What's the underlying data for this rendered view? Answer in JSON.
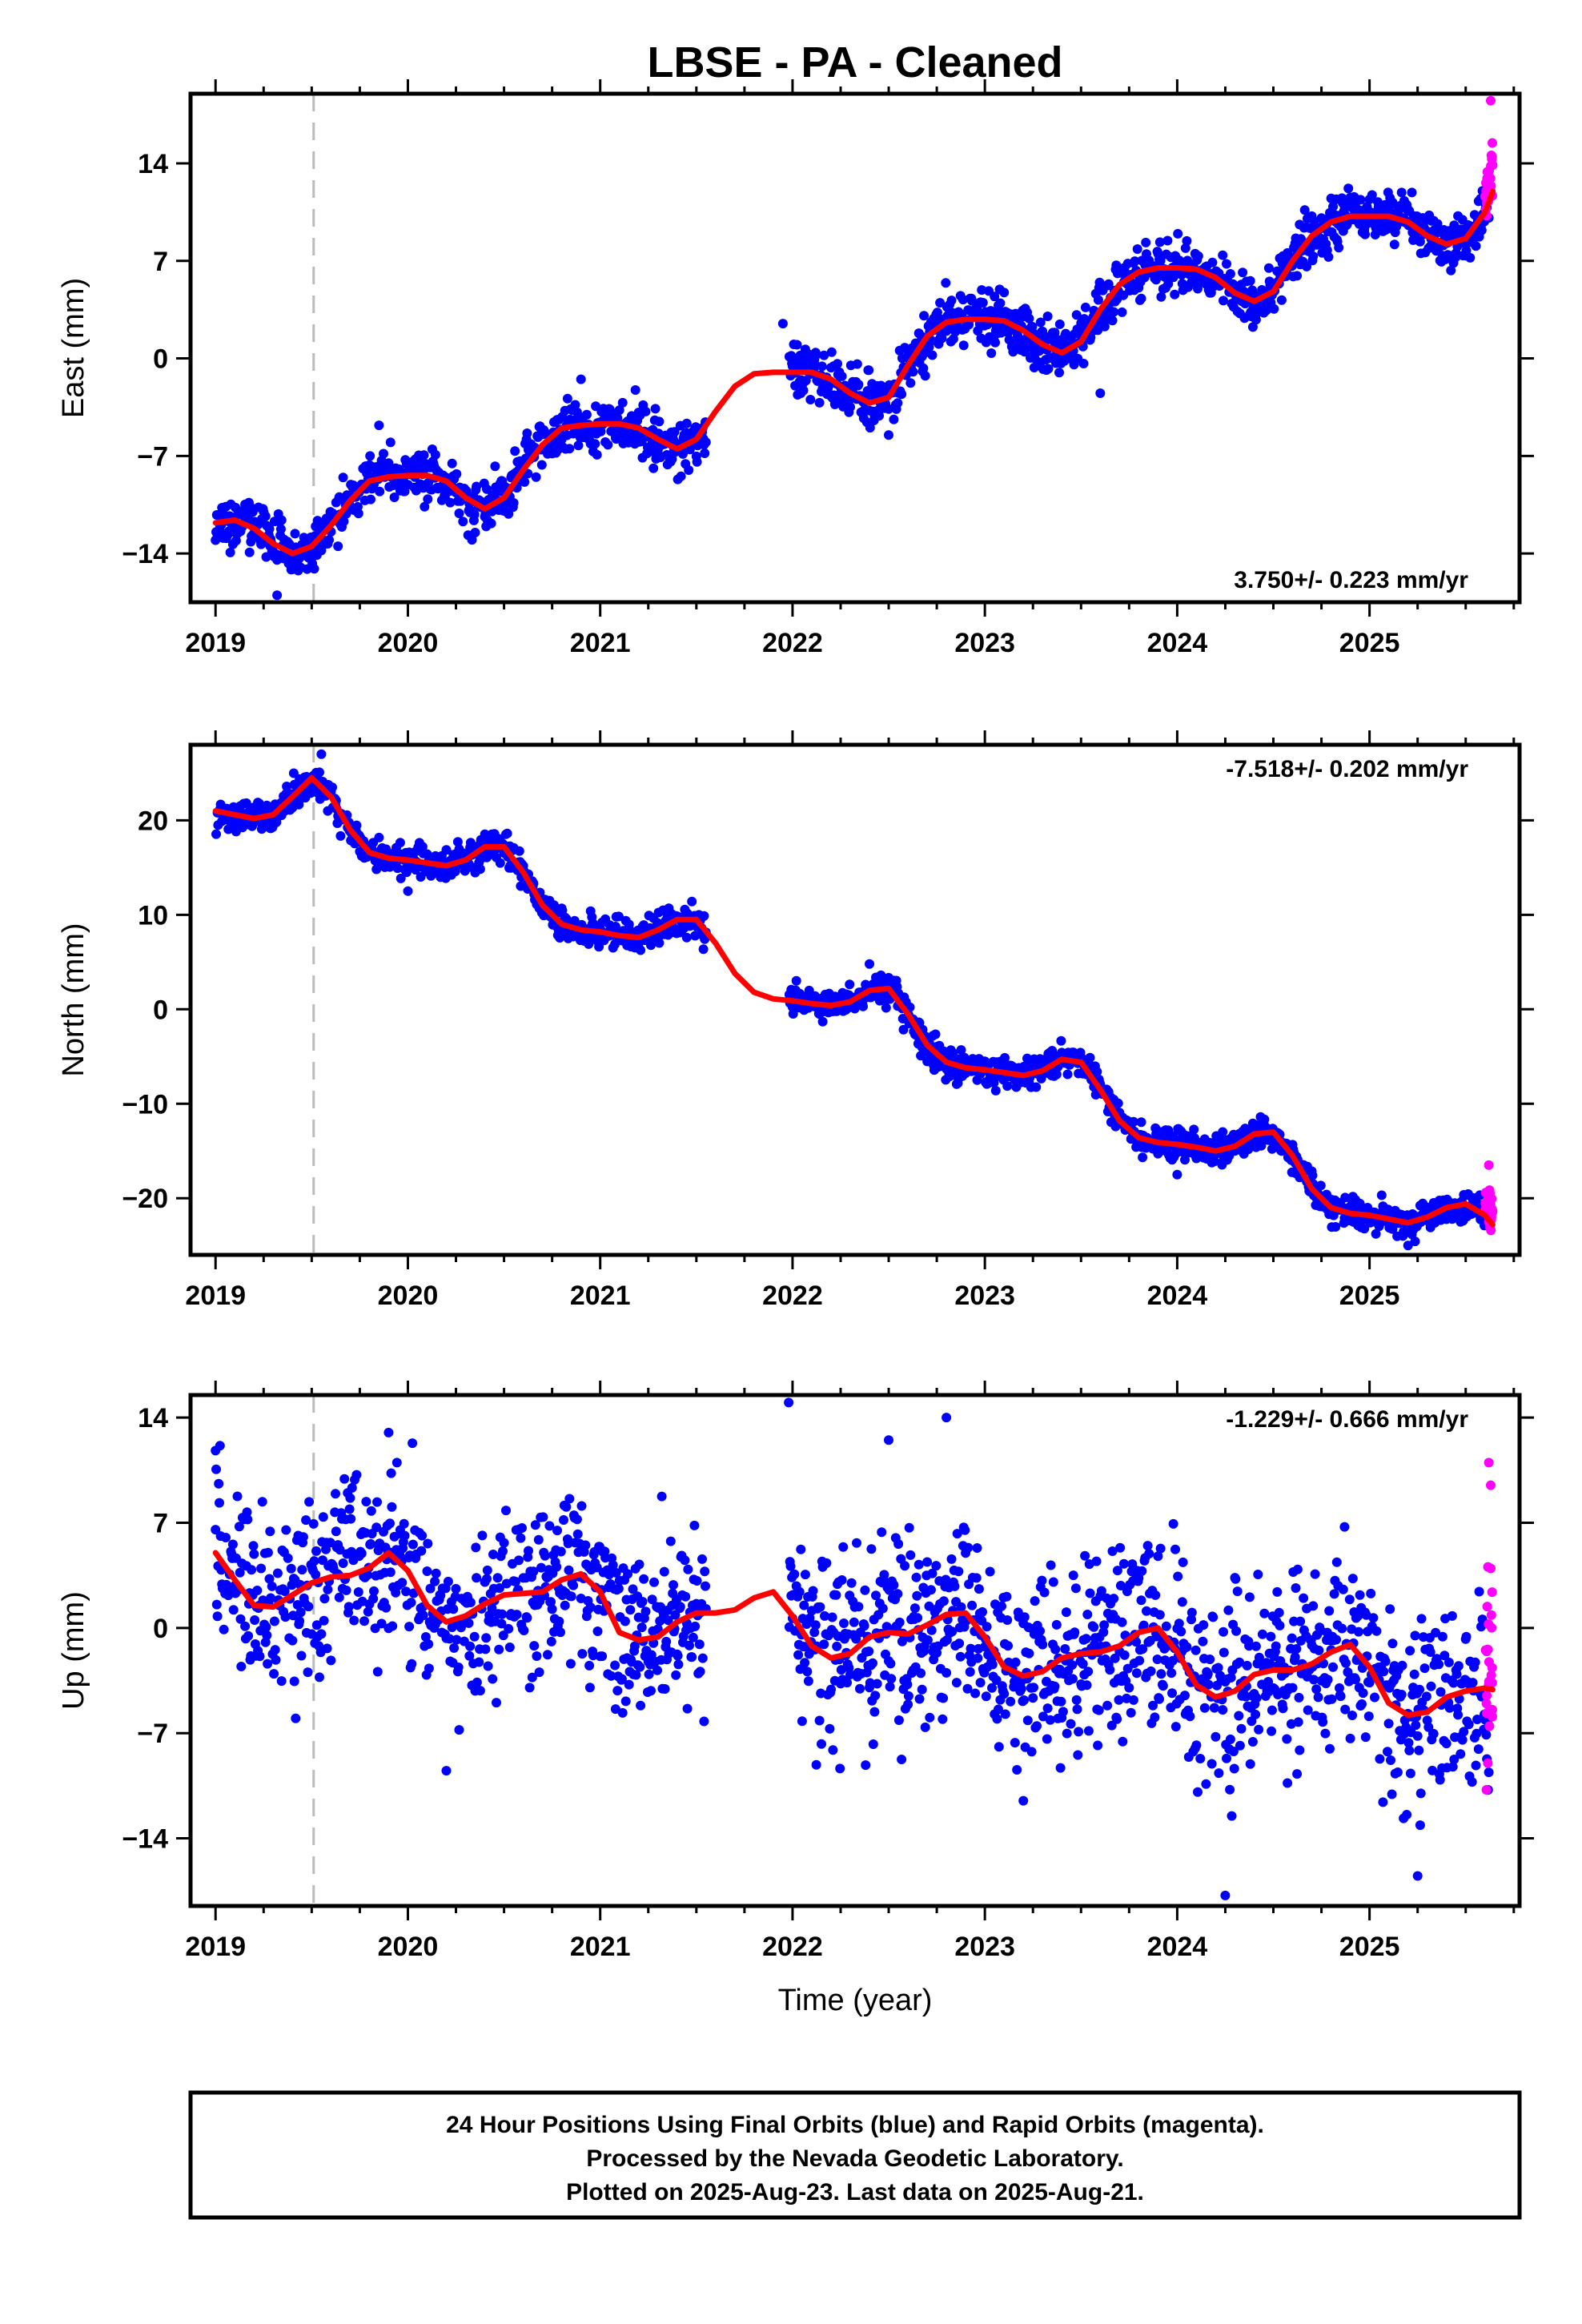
{
  "figure": {
    "title": "LBSE  - PA - Cleaned",
    "footer_lines": [
      "24 Hour Positions Using Final Orbits (blue) and Rapid Orbits (magenta).",
      "Processed by the Nevada Geodetic Laboratory.",
      "Plotted on 2025-Aug-23. Last data on 2025-Aug-21."
    ]
  },
  "colors": {
    "final": "#0000ff",
    "rapid": "#ff00ff",
    "model": "#ff0000",
    "event_line": "#bbbbbb",
    "axis": "#000000"
  },
  "chart_data": [
    {
      "type": "scatter",
      "component": "east",
      "ylabel": "East (mm)",
      "xlabel": "",
      "xlim": [
        2018.87,
        2025.78
      ],
      "ylim": [
        -17.5,
        19
      ],
      "xticks": [
        2019,
        2020,
        2021,
        2022,
        2023,
        2024,
        2025
      ],
      "xtick_labels": [
        "2019",
        "2020",
        "2021",
        "2022",
        "2023",
        "2024",
        "2025"
      ],
      "yticks": [
        -14,
        -7,
        0,
        7,
        14
      ],
      "ytick_labels": [
        "−14",
        "−7",
        "0",
        "7",
        "14"
      ],
      "rate_text": "3.750+/- 0.223 mm/yr",
      "rate_position": "bottom-right",
      "event_line_x": 2019.51,
      "final_range": [
        2019.0,
        2025.62
      ],
      "rapid_range": [
        2025.6,
        2025.64
      ],
      "data_gap": [
        2021.55,
        2021.98
      ],
      "noise_sd": 0.9,
      "outliers": [
        [
          2019.32,
          -17.0
        ],
        [
          2019.85,
          -4.8
        ],
        [
          2020.9,
          -1.5
        ],
        [
          2021.95,
          2.5
        ],
        [
          2022.5,
          -5.5
        ],
        [
          2023.6,
          -2.5
        ],
        [
          2025.63,
          18.5
        ]
      ],
      "model": [
        [
          2019.0,
          -11.8
        ],
        [
          2019.1,
          -11.6
        ],
        [
          2019.2,
          -12.2
        ],
        [
          2019.3,
          -13.3
        ],
        [
          2019.4,
          -14.0
        ],
        [
          2019.5,
          -13.5
        ],
        [
          2019.6,
          -12.0
        ],
        [
          2019.7,
          -10.2
        ],
        [
          2019.8,
          -8.8
        ],
        [
          2019.9,
          -8.5
        ],
        [
          2020.0,
          -8.4
        ],
        [
          2020.1,
          -8.4
        ],
        [
          2020.2,
          -8.8
        ],
        [
          2020.3,
          -10.0
        ],
        [
          2020.4,
          -10.8
        ],
        [
          2020.5,
          -10.0
        ],
        [
          2020.6,
          -8.0
        ],
        [
          2020.7,
          -6.2
        ],
        [
          2020.8,
          -5.0
        ],
        [
          2020.9,
          -4.8
        ],
        [
          2021.0,
          -4.7
        ],
        [
          2021.1,
          -4.7
        ],
        [
          2021.2,
          -5.0
        ],
        [
          2021.3,
          -5.8
        ],
        [
          2021.4,
          -6.5
        ],
        [
          2021.5,
          -5.8
        ],
        [
          2021.6,
          -3.8
        ],
        [
          2021.7,
          -2.0
        ],
        [
          2021.8,
          -1.1
        ],
        [
          2021.9,
          -1.0
        ],
        [
          2022.0,
          -1.0
        ],
        [
          2022.1,
          -1.0
        ],
        [
          2022.2,
          -1.5
        ],
        [
          2022.3,
          -2.5
        ],
        [
          2022.4,
          -3.2
        ],
        [
          2022.5,
          -2.8
        ],
        [
          2022.6,
          -0.5
        ],
        [
          2022.7,
          1.6
        ],
        [
          2022.8,
          2.6
        ],
        [
          2022.9,
          2.8
        ],
        [
          2023.0,
          2.8
        ],
        [
          2023.1,
          2.7
        ],
        [
          2023.2,
          2.0
        ],
        [
          2023.3,
          1.0
        ],
        [
          2023.4,
          0.4
        ],
        [
          2023.5,
          1.2
        ],
        [
          2023.6,
          3.5
        ],
        [
          2023.7,
          5.3
        ],
        [
          2023.8,
          6.2
        ],
        [
          2023.9,
          6.5
        ],
        [
          2024.0,
          6.5
        ],
        [
          2024.1,
          6.4
        ],
        [
          2024.2,
          5.8
        ],
        [
          2024.3,
          4.7
        ],
        [
          2024.4,
          4.1
        ],
        [
          2024.5,
          4.8
        ],
        [
          2024.6,
          7.0
        ],
        [
          2024.7,
          8.8
        ],
        [
          2024.8,
          9.8
        ],
        [
          2024.9,
          10.2
        ],
        [
          2025.0,
          10.2
        ],
        [
          2025.1,
          10.2
        ],
        [
          2025.2,
          9.8
        ],
        [
          2025.3,
          8.8
        ],
        [
          2025.4,
          8.2
        ],
        [
          2025.5,
          8.6
        ],
        [
          2025.6,
          10.5
        ],
        [
          2025.64,
          12.0
        ]
      ]
    },
    {
      "type": "scatter",
      "component": "north",
      "ylabel": "North (mm)",
      "xlabel": "",
      "xlim": [
        2018.87,
        2025.78
      ],
      "ylim": [
        -26,
        28
      ],
      "xticks": [
        2019,
        2020,
        2021,
        2022,
        2023,
        2024,
        2025
      ],
      "xtick_labels": [
        "2019",
        "2020",
        "2021",
        "2022",
        "2023",
        "2024",
        "2025"
      ],
      "yticks": [
        -20,
        -10,
        0,
        10,
        20
      ],
      "ytick_labels": [
        "−20",
        "−10",
        "0",
        "10",
        "20"
      ],
      "rate_text": "-7.518+/- 0.202 mm/yr",
      "rate_position": "top-right",
      "event_line_x": 2019.51,
      "final_range": [
        2019.0,
        2025.62
      ],
      "rapid_range": [
        2025.6,
        2025.64
      ],
      "data_gap": [
        2021.55,
        2021.98
      ],
      "noise_sd": 0.8,
      "outliers": [
        [
          2019.55,
          27.0
        ],
        [
          2020.0,
          12.5
        ],
        [
          2021.2,
          6.5
        ],
        [
          2022.4,
          4.8
        ],
        [
          2024.0,
          -17.5
        ],
        [
          2025.2,
          -25.0
        ],
        [
          2025.62,
          -16.5
        ]
      ],
      "model": [
        [
          2019.0,
          21.0
        ],
        [
          2019.1,
          20.6
        ],
        [
          2019.2,
          20.2
        ],
        [
          2019.3,
          20.6
        ],
        [
          2019.4,
          22.5
        ],
        [
          2019.5,
          24.5
        ],
        [
          2019.6,
          22.5
        ],
        [
          2019.7,
          19.0
        ],
        [
          2019.8,
          16.6
        ],
        [
          2019.9,
          16.0
        ],
        [
          2020.0,
          15.8
        ],
        [
          2020.1,
          15.5
        ],
        [
          2020.2,
          15.2
        ],
        [
          2020.3,
          15.8
        ],
        [
          2020.4,
          17.2
        ],
        [
          2020.5,
          17.2
        ],
        [
          2020.6,
          14.5
        ],
        [
          2020.7,
          11.0
        ],
        [
          2020.8,
          9.0
        ],
        [
          2020.9,
          8.4
        ],
        [
          2021.0,
          8.2
        ],
        [
          2021.1,
          7.8
        ],
        [
          2021.2,
          7.6
        ],
        [
          2021.3,
          8.4
        ],
        [
          2021.4,
          9.5
        ],
        [
          2021.5,
          9.5
        ],
        [
          2021.6,
          7.0
        ],
        [
          2021.7,
          3.8
        ],
        [
          2021.8,
          1.8
        ],
        [
          2021.9,
          1.1
        ],
        [
          2022.0,
          0.9
        ],
        [
          2022.1,
          0.6
        ],
        [
          2022.2,
          0.4
        ],
        [
          2022.3,
          0.8
        ],
        [
          2022.4,
          2.0
        ],
        [
          2022.5,
          2.2
        ],
        [
          2022.6,
          -0.5
        ],
        [
          2022.7,
          -3.8
        ],
        [
          2022.8,
          -5.6
        ],
        [
          2022.9,
          -6.2
        ],
        [
          2023.0,
          -6.4
        ],
        [
          2023.1,
          -6.7
        ],
        [
          2023.2,
          -7.0
        ],
        [
          2023.3,
          -6.5
        ],
        [
          2023.4,
          -5.3
        ],
        [
          2023.5,
          -5.6
        ],
        [
          2023.6,
          -8.5
        ],
        [
          2023.7,
          -11.8
        ],
        [
          2023.8,
          -13.6
        ],
        [
          2023.9,
          -14.1
        ],
        [
          2024.0,
          -14.3
        ],
        [
          2024.1,
          -14.6
        ],
        [
          2024.2,
          -15.0
        ],
        [
          2024.3,
          -14.5
        ],
        [
          2024.4,
          -13.2
        ],
        [
          2024.5,
          -13.0
        ],
        [
          2024.6,
          -15.5
        ],
        [
          2024.7,
          -19.0
        ],
        [
          2024.8,
          -21.0
        ],
        [
          2024.9,
          -21.6
        ],
        [
          2025.0,
          -21.8
        ],
        [
          2025.1,
          -22.2
        ],
        [
          2025.2,
          -22.6
        ],
        [
          2025.3,
          -22.0
        ],
        [
          2025.4,
          -21.0
        ],
        [
          2025.5,
          -20.6
        ],
        [
          2025.6,
          -21.8
        ],
        [
          2025.64,
          -22.8
        ]
      ]
    },
    {
      "type": "scatter",
      "component": "up",
      "ylabel": "Up (mm)",
      "xlabel": "Time (year)",
      "xlim": [
        2018.87,
        2025.78
      ],
      "ylim": [
        -18.5,
        15.5
      ],
      "xticks": [
        2019,
        2020,
        2021,
        2022,
        2023,
        2024,
        2025
      ],
      "xtick_labels": [
        "2019",
        "2020",
        "2021",
        "2022",
        "2023",
        "2024",
        "2025"
      ],
      "yticks": [
        -14,
        -7,
        0,
        7,
        14
      ],
      "ytick_labels": [
        "−14",
        "−7",
        "0",
        "7",
        "14"
      ],
      "rate_text": "-1.229+/- 0.666 mm/yr",
      "rate_position": "top-right",
      "event_line_x": 2019.51,
      "final_range": [
        2019.0,
        2025.62
      ],
      "rapid_range": [
        2025.6,
        2025.64
      ],
      "data_gap": [
        2021.55,
        2021.98
      ],
      "noise_sd": 3.0,
      "outliers": [
        [
          2019.0,
          11.8
        ],
        [
          2019.9,
          13.0
        ],
        [
          2021.98,
          15.0
        ],
        [
          2022.5,
          12.5
        ],
        [
          2022.8,
          14.0
        ],
        [
          2020.2,
          -9.5
        ],
        [
          2024.25,
          -17.8
        ],
        [
          2025.25,
          -16.5
        ],
        [
          2023.2,
          -11.5
        ],
        [
          2025.62,
          11.0
        ],
        [
          2025.63,
          9.5
        ]
      ],
      "model": [
        [
          2019.0,
          5.0
        ],
        [
          2019.1,
          3.2
        ],
        [
          2019.2,
          1.5
        ],
        [
          2019.3,
          1.4
        ],
        [
          2019.4,
          2.2
        ],
        [
          2019.5,
          3.0
        ],
        [
          2019.6,
          3.4
        ],
        [
          2019.7,
          3.5
        ],
        [
          2019.8,
          4.0
        ],
        [
          2019.9,
          5.0
        ],
        [
          2020.0,
          3.8
        ],
        [
          2020.1,
          1.5
        ],
        [
          2020.2,
          0.4
        ],
        [
          2020.3,
          0.8
        ],
        [
          2020.4,
          1.6
        ],
        [
          2020.5,
          2.2
        ],
        [
          2020.6,
          2.3
        ],
        [
          2020.7,
          2.4
        ],
        [
          2020.8,
          3.2
        ],
        [
          2020.9,
          3.6
        ],
        [
          2021.0,
          2.4
        ],
        [
          2021.1,
          -0.3
        ],
        [
          2021.2,
          -0.8
        ],
        [
          2021.3,
          -0.6
        ],
        [
          2021.4,
          0.4
        ],
        [
          2021.5,
          1.0
        ],
        [
          2021.6,
          1.0
        ],
        [
          2021.7,
          1.2
        ],
        [
          2021.8,
          2.0
        ],
        [
          2021.9,
          2.4
        ],
        [
          2022.0,
          0.8
        ],
        [
          2022.1,
          -1.2
        ],
        [
          2022.2,
          -2.0
        ],
        [
          2022.3,
          -1.7
        ],
        [
          2022.4,
          -0.6
        ],
        [
          2022.5,
          -0.3
        ],
        [
          2022.6,
          -0.4
        ],
        [
          2022.7,
          0.2
        ],
        [
          2022.8,
          0.9
        ],
        [
          2022.9,
          1.0
        ],
        [
          2023.0,
          -0.6
        ],
        [
          2023.1,
          -2.6
        ],
        [
          2023.2,
          -3.2
        ],
        [
          2023.3,
          -2.9
        ],
        [
          2023.4,
          -2.0
        ],
        [
          2023.5,
          -1.7
        ],
        [
          2023.6,
          -1.6
        ],
        [
          2023.7,
          -1.2
        ],
        [
          2023.8,
          -0.3
        ],
        [
          2023.9,
          0.0
        ],
        [
          2024.0,
          -1.6
        ],
        [
          2024.1,
          -3.8
        ],
        [
          2024.2,
          -4.6
        ],
        [
          2024.3,
          -4.2
        ],
        [
          2024.4,
          -3.1
        ],
        [
          2024.5,
          -2.8
        ],
        [
          2024.6,
          -2.8
        ],
        [
          2024.7,
          -2.4
        ],
        [
          2024.8,
          -1.6
        ],
        [
          2024.9,
          -1.1
        ],
        [
          2025.0,
          -2.6
        ],
        [
          2025.1,
          -5.0
        ],
        [
          2025.2,
          -5.8
        ],
        [
          2025.3,
          -5.6
        ],
        [
          2025.4,
          -4.6
        ],
        [
          2025.5,
          -4.2
        ],
        [
          2025.6,
          -4.0
        ],
        [
          2025.64,
          -4.1
        ]
      ]
    }
  ]
}
